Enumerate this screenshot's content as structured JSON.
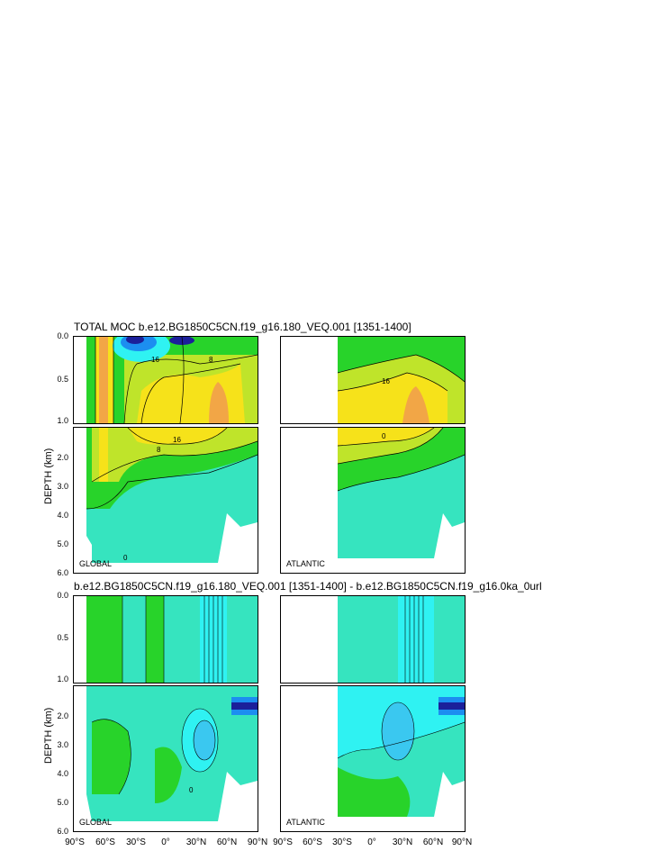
{
  "chart_data": {
    "type": "contour",
    "titles": {
      "top": "TOTAL MOC b.e12.BG1850C5CN.f19_g16.180_VEQ.001 [1351-1400]",
      "bottom": "b.e12.BG1850C5CN.f19_g16.180_VEQ.001 [1351-1400] - b.e12.BG1850C5CN.f19_g16.0ka_0url"
    },
    "ylabel": "DEPTH (km)",
    "yticks_upper": [
      "0.0",
      "0.5",
      "1.0"
    ],
    "yticks_lower": [
      "2.0",
      "3.0",
      "4.0",
      "5.0",
      "6.0"
    ],
    "xticks_global": [
      "90°S",
      "60°S",
      "30°S",
      "0°",
      "30°N",
      "60°N",
      "90°N"
    ],
    "xticks_atlantic": [
      "90°S",
      "60°S",
      "30°S",
      "0°",
      "30°N",
      "60°N",
      "90°N"
    ],
    "regions": [
      "GLOBAL",
      "ATLANTIC"
    ],
    "contour_labels": [
      "16",
      "8",
      "16",
      "16",
      "8",
      "0",
      "0",
      "0"
    ],
    "colors": {
      "orange": "#f2a646",
      "yellow": "#f6e21a",
      "yellowgreen": "#bfe42a",
      "green": "#28d32a",
      "teal": "#36e4bf",
      "cyan": "#2ff2f2",
      "lightblue": "#3ac8f0",
      "blue": "#1c8ef0",
      "navy": "#1b1f9a"
    }
  }
}
